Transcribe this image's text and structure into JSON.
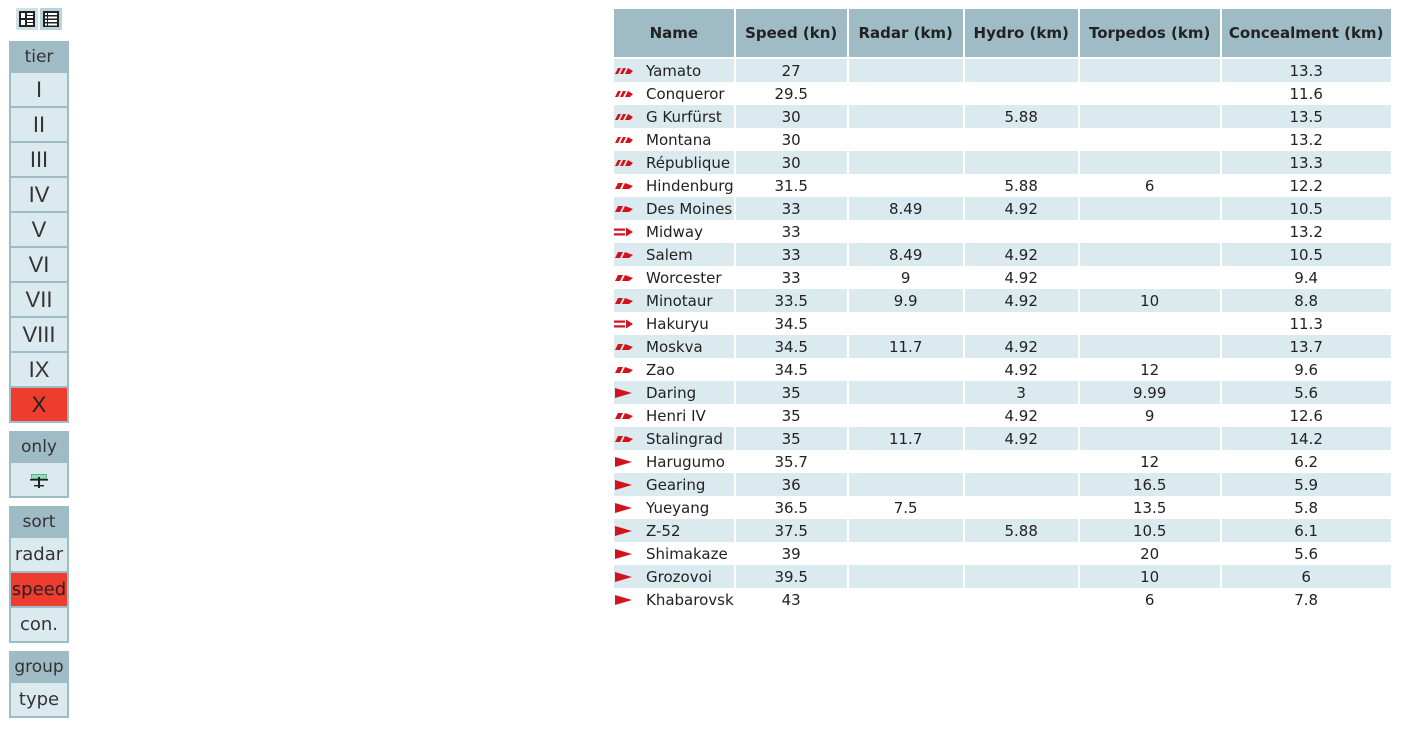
{
  "controls": {
    "tier": {
      "title": "tier",
      "options": [
        "I",
        "II",
        "III",
        "IV",
        "V",
        "VI",
        "VII",
        "VIII",
        "IX",
        "X"
      ],
      "selected": "X"
    },
    "only": {
      "title": "only",
      "icon": "aircraft-icon"
    },
    "sort": {
      "title": "sort",
      "options": [
        "radar",
        "speed",
        "con."
      ],
      "selected": "speed"
    },
    "group": {
      "title": "group",
      "options": [
        "type"
      ]
    }
  },
  "colors": {
    "accent": "#ee3d2f",
    "header": "#9fbcc6",
    "stripe": "#daeaef",
    "ship_icon": "#d4121c"
  },
  "table": {
    "columns": [
      "Name",
      "Speed (kn)",
      "Radar (km)",
      "Hydro (km)",
      "Torpedos (km)",
      "Concealment (km)"
    ],
    "rows": [
      {
        "type": "battleship",
        "name": "Yamato",
        "speed": "27",
        "radar": "",
        "hydro": "",
        "torpedos": "",
        "concealment": "13.3"
      },
      {
        "type": "battleship",
        "name": "Conqueror",
        "speed": "29.5",
        "radar": "",
        "hydro": "",
        "torpedos": "",
        "concealment": "11.6"
      },
      {
        "type": "battleship",
        "name": "G Kurfürst",
        "speed": "30",
        "radar": "",
        "hydro": "5.88",
        "torpedos": "",
        "concealment": "13.5"
      },
      {
        "type": "battleship",
        "name": "Montana",
        "speed": "30",
        "radar": "",
        "hydro": "",
        "torpedos": "",
        "concealment": "13.2"
      },
      {
        "type": "battleship",
        "name": "République",
        "speed": "30",
        "radar": "",
        "hydro": "",
        "torpedos": "",
        "concealment": "13.3"
      },
      {
        "type": "cruiser",
        "name": "Hindenburg",
        "speed": "31.5",
        "radar": "",
        "hydro": "5.88",
        "torpedos": "6",
        "concealment": "12.2"
      },
      {
        "type": "cruiser",
        "name": "Des Moines",
        "speed": "33",
        "radar": "8.49",
        "hydro": "4.92",
        "torpedos": "",
        "concealment": "10.5"
      },
      {
        "type": "carrier",
        "name": "Midway",
        "speed": "33",
        "radar": "",
        "hydro": "",
        "torpedos": "",
        "concealment": "13.2"
      },
      {
        "type": "cruiser",
        "name": "Salem",
        "speed": "33",
        "radar": "8.49",
        "hydro": "4.92",
        "torpedos": "",
        "concealment": "10.5"
      },
      {
        "type": "cruiser",
        "name": "Worcester",
        "speed": "33",
        "radar": "9",
        "hydro": "4.92",
        "torpedos": "",
        "concealment": "9.4"
      },
      {
        "type": "cruiser",
        "name": "Minotaur",
        "speed": "33.5",
        "radar": "9.9",
        "hydro": "4.92",
        "torpedos": "10",
        "concealment": "8.8"
      },
      {
        "type": "carrier",
        "name": "Hakuryu",
        "speed": "34.5",
        "radar": "",
        "hydro": "",
        "torpedos": "",
        "concealment": "11.3"
      },
      {
        "type": "cruiser",
        "name": "Moskva",
        "speed": "34.5",
        "radar": "11.7",
        "hydro": "4.92",
        "torpedos": "",
        "concealment": "13.7"
      },
      {
        "type": "cruiser",
        "name": "Zao",
        "speed": "34.5",
        "radar": "",
        "hydro": "4.92",
        "torpedos": "12",
        "concealment": "9.6"
      },
      {
        "type": "destroyer",
        "name": "Daring",
        "speed": "35",
        "radar": "",
        "hydro": "3",
        "torpedos": "9.99",
        "concealment": "5.6"
      },
      {
        "type": "cruiser",
        "name": "Henri IV",
        "speed": "35",
        "radar": "",
        "hydro": "4.92",
        "torpedos": "9",
        "concealment": "12.6"
      },
      {
        "type": "cruiser",
        "name": "Stalingrad",
        "speed": "35",
        "radar": "11.7",
        "hydro": "4.92",
        "torpedos": "",
        "concealment": "14.2"
      },
      {
        "type": "destroyer",
        "name": "Harugumo",
        "speed": "35.7",
        "radar": "",
        "hydro": "",
        "torpedos": "12",
        "concealment": "6.2"
      },
      {
        "type": "destroyer",
        "name": "Gearing",
        "speed": "36",
        "radar": "",
        "hydro": "",
        "torpedos": "16.5",
        "concealment": "5.9"
      },
      {
        "type": "destroyer",
        "name": "Yueyang",
        "speed": "36.5",
        "radar": "7.5",
        "hydro": "",
        "torpedos": "13.5",
        "concealment": "5.8"
      },
      {
        "type": "destroyer",
        "name": "Z-52",
        "speed": "37.5",
        "radar": "",
        "hydro": "5.88",
        "torpedos": "10.5",
        "concealment": "6.1"
      },
      {
        "type": "destroyer",
        "name": "Shimakaze",
        "speed": "39",
        "radar": "",
        "hydro": "",
        "torpedos": "20",
        "concealment": "5.6"
      },
      {
        "type": "destroyer",
        "name": "Grozovoi",
        "speed": "39.5",
        "radar": "",
        "hydro": "",
        "torpedos": "10",
        "concealment": "6"
      },
      {
        "type": "destroyer",
        "name": "Khabarovsk",
        "speed": "43",
        "radar": "",
        "hydro": "",
        "torpedos": "6",
        "concealment": "7.8"
      }
    ]
  }
}
